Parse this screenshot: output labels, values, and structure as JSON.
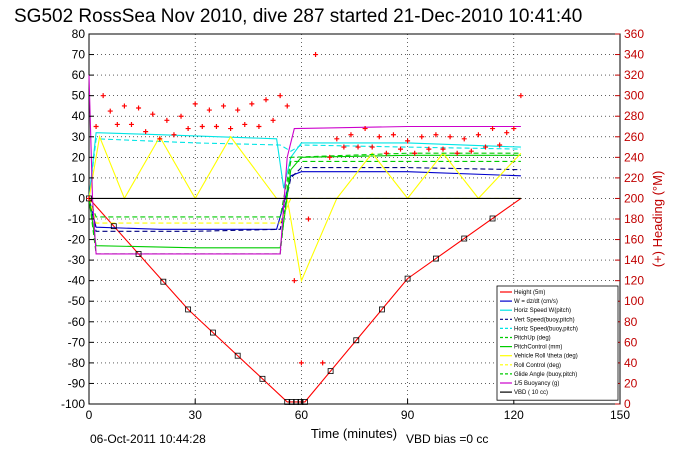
{
  "chart_data": {
    "type": "line",
    "title": "SG502 RossSea Nov 2010, dive 287 started 21-Dec-2010 10:41:40",
    "xlabel": "Time (minutes)",
    "ylabel_right": "(+) Heading (°M)",
    "xlim": [
      0,
      150
    ],
    "ylim": [
      -100,
      80
    ],
    "ylim_right": [
      0,
      360
    ],
    "x_ticks": [
      0,
      30,
      60,
      90,
      120,
      150
    ],
    "y_ticks": [
      -100,
      -90,
      -80,
      -70,
      -60,
      -50,
      -40,
      -30,
      -20,
      -10,
      0,
      10,
      20,
      30,
      40,
      50,
      60,
      70,
      80
    ],
    "y_ticks_right": [
      0,
      20,
      40,
      60,
      80,
      100,
      120,
      140,
      160,
      180,
      200,
      220,
      240,
      260,
      280,
      300,
      320,
      340,
      360
    ],
    "grid": true,
    "legend_position": "lower-right",
    "footer_date": "06-Oct-2011 10:44:28",
    "footer_note": "VBD bias =0 cc",
    "series": [
      {
        "name": "Height (5m)",
        "color": "#ff0000",
        "style": "solid",
        "x": [
          0,
          28,
          56,
          61,
          90,
          122
        ],
        "y": [
          0,
          -54,
          -99,
          -99,
          -39,
          0
        ]
      },
      {
        "name": "W = dz/dt (cm/s)",
        "color": "#0000cc",
        "style": "solid",
        "x": [
          0,
          2,
          20,
          53,
          55,
          57,
          60,
          90,
          122
        ],
        "y": [
          0,
          -14,
          -15,
          -15,
          -3,
          11,
          13,
          13,
          11
        ]
      },
      {
        "name": "Horiz Speed W(pitch)",
        "color": "#00e5e5",
        "style": "solid",
        "x": [
          0,
          2,
          20,
          53,
          55,
          57,
          60,
          90,
          122
        ],
        "y": [
          0,
          32,
          31,
          29,
          5,
          20,
          27,
          27,
          25
        ]
      },
      {
        "name": "Vert Speed(buoy,pitch)",
        "color": "#000080",
        "style": "dashed",
        "x": [
          0,
          2,
          30,
          54,
          57,
          60,
          90,
          122
        ],
        "y": [
          0,
          -16,
          -16,
          -15,
          10,
          15,
          15,
          14
        ]
      },
      {
        "name": "Horiz Speed(buoy,pitch)",
        "color": "#00e5e5",
        "style": "dashed",
        "x": [
          0,
          2,
          30,
          54,
          57,
          60,
          90,
          122
        ],
        "y": [
          0,
          29,
          27,
          26,
          23,
          26,
          25,
          24
        ]
      },
      {
        "name": "PitchUp (deg)",
        "color": "#00cc00",
        "style": "dashed",
        "x": [
          0,
          2,
          54,
          55,
          57,
          122
        ],
        "y": [
          0,
          -9,
          -9,
          0,
          18,
          18
        ]
      },
      {
        "name": "PitchControl (mm)",
        "color": "#00cc00",
        "style": "solid",
        "x": [
          0,
          2,
          30,
          54,
          57,
          60,
          90,
          122
        ],
        "y": [
          0,
          -23,
          -24,
          -24,
          14,
          20,
          21,
          21
        ]
      },
      {
        "name": "Vehicle Roll \\theta (deg)",
        "color": "#ffff00",
        "style": "solid",
        "x": [
          0,
          3,
          10,
          20,
          30,
          40,
          53,
          56,
          60,
          70,
          80,
          90,
          100,
          110,
          122
        ],
        "y": [
          0,
          30,
          0,
          30,
          0,
          30,
          0,
          0,
          -40,
          0,
          22,
          0,
          22,
          0,
          22
        ]
      },
      {
        "name": "Roll Control (deg)",
        "color": "#ffff00",
        "style": "dashed",
        "x": [
          0,
          2,
          30,
          54,
          57,
          90,
          122
        ],
        "y": [
          0,
          -12,
          -12,
          -12,
          0,
          0,
          0
        ]
      },
      {
        "name": "Glide Angle (buoy,pitch)",
        "color": "#00cc00",
        "style": "dashed",
        "x": [
          0,
          2,
          30,
          54,
          57,
          90,
          122
        ],
        "y": [
          0,
          -27,
          -27,
          -27,
          20,
          22,
          22
        ]
      },
      {
        "name": "1/5 Buoyancy (g)",
        "color": "#cc00cc",
        "style": "solid",
        "x": [
          0,
          1,
          2,
          30,
          54,
          56,
          58,
          90,
          122
        ],
        "y": [
          60,
          0,
          -27,
          -27,
          -27,
          20,
          34,
          35,
          35
        ]
      },
      {
        "name": "VBD ( 10 cc)",
        "color": "#000000",
        "style": "solid",
        "x": [
          0,
          122
        ],
        "y": [
          0,
          0
        ]
      }
    ],
    "heading": {
      "name": "(+) Heading (°M)",
      "color": "#ff0000",
      "marker": "+",
      "x": [
        0,
        2,
        4,
        6,
        8,
        10,
        12,
        14,
        16,
        18,
        20,
        22,
        24,
        26,
        28,
        30,
        32,
        34,
        36,
        38,
        40,
        42,
        44,
        46,
        48,
        50,
        52,
        54,
        56,
        58,
        60,
        62,
        64,
        66,
        68,
        70,
        72,
        74,
        76,
        78,
        80,
        82,
        84,
        86,
        88,
        90,
        92,
        94,
        96,
        98,
        100,
        102,
        104,
        106,
        108,
        110,
        112,
        114,
        116,
        118,
        120,
        122
      ],
      "y": [
        200,
        270,
        300,
        285,
        272,
        290,
        272,
        288,
        265,
        282,
        258,
        276,
        262,
        280,
        268,
        292,
        270,
        286,
        270,
        290,
        268,
        286,
        272,
        292,
        270,
        296,
        276,
        300,
        290,
        120,
        40,
        180,
        340,
        40,
        240,
        258,
        250,
        262,
        250,
        268,
        250,
        260,
        244,
        262,
        248,
        256,
        244,
        260,
        248,
        262,
        248,
        260,
        244,
        258,
        246,
        262,
        250,
        268,
        252,
        264,
        268,
        300
      ]
    }
  }
}
